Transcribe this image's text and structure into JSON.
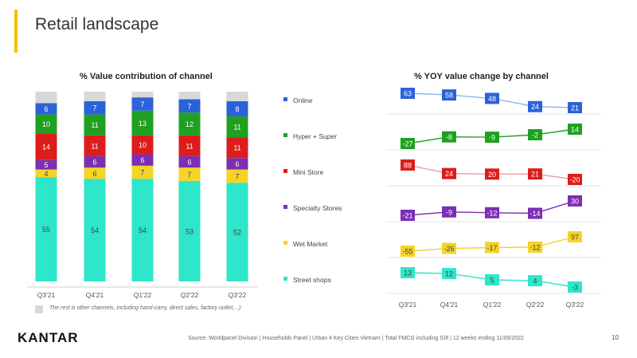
{
  "slide": {
    "title": "Retail landscape",
    "footnote": "The rest is other channels,  including  hand-carry,  direct sales,  factory outlet,...)",
    "logo": "KANTAR",
    "source": "Source:  Worldpanel Division | Households Panel | Urban  4 Key Cities Vietnam  | Total FMCG including Gift | 12 weeks ending 11/09/2022",
    "page_number": "10",
    "colors": {
      "accent": "#f2c200"
    }
  },
  "chart_data": [
    {
      "type": "bar",
      "stacked": true,
      "title": "% Value contribution of channel",
      "categories": [
        "Q3'21",
        "Q4'21",
        "Q1'22",
        "Q2'22",
        "Q3'22"
      ],
      "series": [
        {
          "name": "Street shops",
          "color": "#2ee6c9",
          "label_color": "#444444",
          "values": [
            55,
            54,
            54,
            53,
            52
          ]
        },
        {
          "name": "Wet Market",
          "color": "#f5d327",
          "label_color": "#444444",
          "values": [
            4,
            6,
            7,
            7,
            7
          ]
        },
        {
          "name": "Specialty Stores",
          "color": "#7b2fb3",
          "label_color": "#ffffff",
          "values": [
            5,
            6,
            6,
            6,
            6
          ]
        },
        {
          "name": "Mini Store",
          "color": "#dd1c1c",
          "label_color": "#ffffff",
          "values": [
            14,
            11,
            10,
            11,
            11
          ]
        },
        {
          "name": "Hyper + Super",
          "color": "#20a020",
          "label_color": "#ffffff",
          "values": [
            10,
            11,
            13,
            12,
            11
          ]
        },
        {
          "name": "Online",
          "color": "#2b62d9",
          "label_color": "#ffffff",
          "values": [
            6,
            7,
            7,
            7,
            8
          ]
        },
        {
          "name": "Other channels",
          "color": "#d8d8d8",
          "label_color": "#444444",
          "values": [
            6,
            5,
            3,
            4,
            5
          ],
          "show_labels": false
        }
      ]
    },
    {
      "type": "line",
      "title": "% YOY value change by channel",
      "categories": [
        "Q3'21",
        "Q4'21",
        "Q1'22",
        "Q2'22",
        "Q3'22"
      ],
      "series": [
        {
          "name": "Online",
          "color": "#2b62d9",
          "line_color": "#8fb3ee",
          "label_color": "#ffffff",
          "values": [
            63,
            58,
            48,
            24,
            21
          ]
        },
        {
          "name": "Hyper + Super",
          "color": "#20a020",
          "line_color": "#20a020",
          "label_color": "#ffffff",
          "values": [
            -27,
            -8,
            -9,
            -2,
            14
          ]
        },
        {
          "name": "Mini Store",
          "color": "#dd1c1c",
          "line_color": "#f09a9a",
          "label_color": "#ffffff",
          "values": [
            88,
            24,
            20,
            21,
            -20
          ]
        },
        {
          "name": "Specialty Stores",
          "color": "#7b2fb3",
          "line_color": "#7b2fb3",
          "label_color": "#ffffff",
          "values": [
            -21,
            -9,
            -12,
            -14,
            30
          ]
        },
        {
          "name": "Wet Market",
          "color": "#f5d327",
          "line_color": "#f5d327",
          "label_color": "#444444",
          "values": [
            -55,
            -26,
            -17,
            -12,
            97
          ]
        },
        {
          "name": "Street shops",
          "color": "#2ee6c9",
          "line_color": "#2ee6c9",
          "label_color": "#444444",
          "values": [
            13,
            12,
            5,
            4,
            -3
          ]
        }
      ]
    }
  ]
}
